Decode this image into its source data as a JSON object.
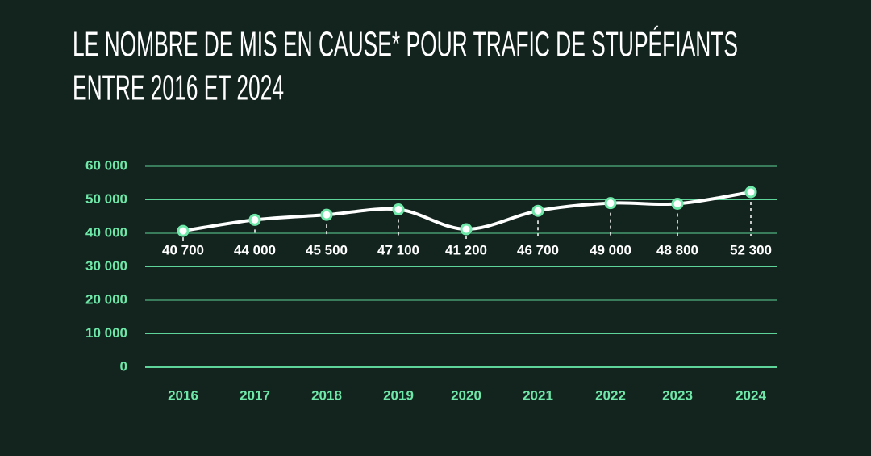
{
  "chart_data": {
    "type": "line",
    "title": [
      "LE NOMBRE DE MIS EN CAUSE* POUR TRAFIC DE STUPÉFIANTS",
      "ENTRE 2016 ET 2024"
    ],
    "categories": [
      "2016",
      "2017",
      "2018",
      "2019",
      "2020",
      "2021",
      "2022",
      "2023",
      "2024"
    ],
    "values": [
      40700,
      44000,
      45500,
      47100,
      41200,
      46700,
      49000,
      48800,
      52300
    ],
    "value_labels": [
      "40 700",
      "44 000",
      "45 500",
      "47 100",
      "41 200",
      "46 700",
      "49 000",
      "48 800",
      "52 300"
    ],
    "color": "#ffffff",
    "marker_color": "#6ee7a8",
    "ylim": [
      0,
      60000
    ],
    "yticks": [
      0,
      {
        "value": 10000,
        "label": "10 000"
      },
      {
        "value": 20000,
        "label": "20 000"
      },
      {
        "value": 30000,
        "label": "30 000"
      },
      {
        "value": 40000,
        "label": "40 000"
      },
      {
        "value": 50000,
        "label": "50 000"
      },
      {
        "value": 60000,
        "label": "60 000"
      }
    ],
    "grid": true
  }
}
